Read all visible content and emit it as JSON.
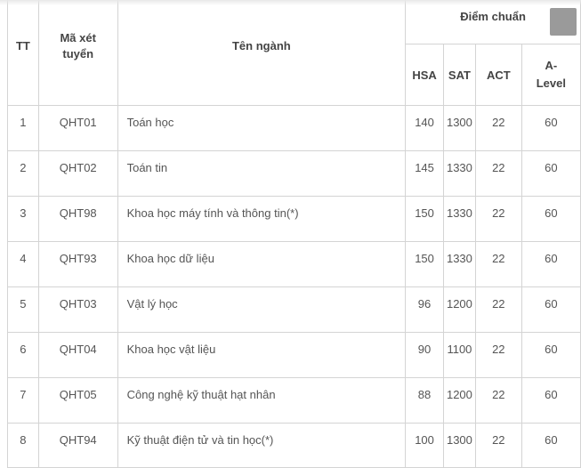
{
  "table": {
    "headers": {
      "tt": "TT",
      "code": "Mã xét tuyển",
      "name": "Tên ngành",
      "group": "Điểm chuẩn",
      "hsa": "HSA",
      "sat": "SAT",
      "act": "ACT",
      "alevel": "A-Level"
    },
    "rows": [
      {
        "tt": "1",
        "code": "QHT01",
        "name": "Toán học",
        "hsa": "140",
        "sat": "1300",
        "act": "22",
        "alevel": "60"
      },
      {
        "tt": "2",
        "code": "QHT02",
        "name": "Toán tin",
        "hsa": "145",
        "sat": "1330",
        "act": "22",
        "alevel": "60"
      },
      {
        "tt": "3",
        "code": "QHT98",
        "name": "Khoa học máy tính và thông tin(*)",
        "hsa": "150",
        "sat": "1330",
        "act": "22",
        "alevel": "60"
      },
      {
        "tt": "4",
        "code": "QHT93",
        "name": "Khoa học dữ liệu",
        "hsa": "150",
        "sat": "1330",
        "act": "22",
        "alevel": "60"
      },
      {
        "tt": "5",
        "code": "QHT03",
        "name": "Vật lý học",
        "hsa": "96",
        "sat": "1200",
        "act": "22",
        "alevel": "60"
      },
      {
        "tt": "6",
        "code": "QHT04",
        "name": "Khoa học vật liệu",
        "hsa": "90",
        "sat": "1100",
        "act": "22",
        "alevel": "60"
      },
      {
        "tt": "7",
        "code": "QHT05",
        "name": "Công nghệ kỹ thuật hạt nhân",
        "hsa": "88",
        "sat": "1200",
        "act": "22",
        "alevel": "60"
      },
      {
        "tt": "8",
        "code": "QHT94",
        "name": "Kỹ thuật điện tử và tin học(*)",
        "hsa": "100",
        "sat": "1300",
        "act": "22",
        "alevel": "60"
      }
    ]
  }
}
